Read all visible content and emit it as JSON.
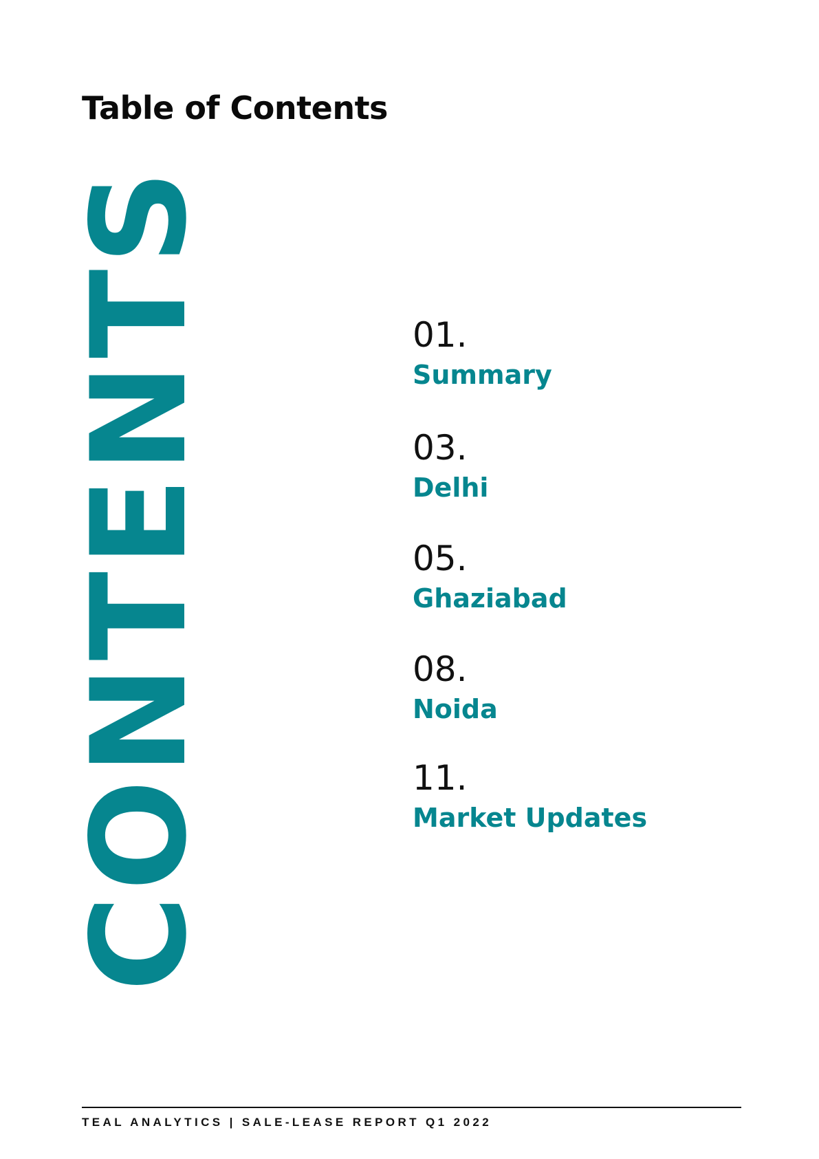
{
  "page": {
    "title": "Table of Contents",
    "vertical_word": "CONTENTS"
  },
  "toc": {
    "entries": [
      {
        "number": "01.",
        "label": "Summary"
      },
      {
        "number": "03.",
        "label": "Delhi"
      },
      {
        "number": "05.",
        "label": "Ghaziabad"
      },
      {
        "number": "08.",
        "label": "Noida"
      },
      {
        "number": "11.",
        "label": "Market Updates"
      }
    ]
  },
  "footer": {
    "text": "TEAL ANALYTICS | SALE-LEASE REPORT Q1 2022"
  },
  "colors": {
    "accent": "#06868f",
    "text": "#111111",
    "background": "#ffffff"
  }
}
